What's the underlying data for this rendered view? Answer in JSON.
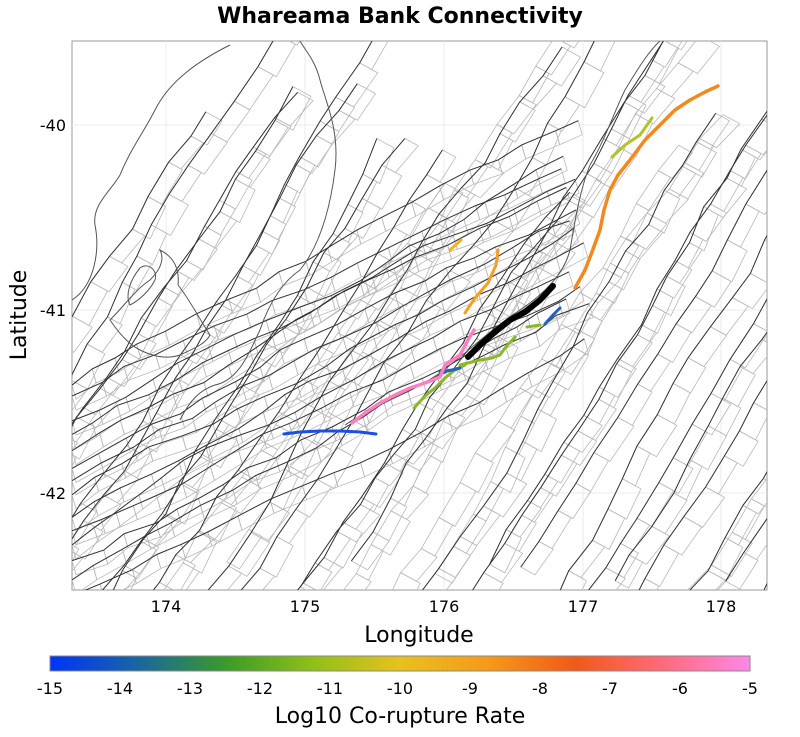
{
  "title": "Whareama Bank Connectivity",
  "x_axis": {
    "label": "Longitude",
    "ticks": [
      "174",
      "175",
      "176",
      "177",
      "178"
    ]
  },
  "y_axis": {
    "label": "Latitude",
    "ticks": [
      "-40",
      "-41",
      "-42"
    ]
  },
  "colorbar": {
    "label": "Log10 Co-rupture Rate",
    "ticks": [
      "-15",
      "-14",
      "-13",
      "-12",
      "-11",
      "-10",
      "-9",
      "-8",
      "-7",
      "-6",
      "-5"
    ],
    "stops": [
      "#0033ff",
      "#1a66a0",
      "#3a9a2a",
      "#8fbf1a",
      "#e8c21a",
      "#f59a1a",
      "#f05a1a",
      "#ff6a7a",
      "#ff88e8"
    ]
  },
  "colors": {
    "target_fault": "#000000",
    "fault_trace": "#333333",
    "subsection_outline": "#b8b8b8",
    "coastline": "#555555"
  }
}
